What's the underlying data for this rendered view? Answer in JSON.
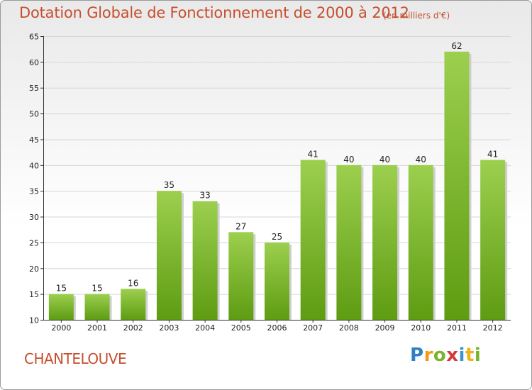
{
  "header": {
    "title": "Dotation Globale de Fonctionnement de 2000 à 2012",
    "unit": "(en milliers d'€)"
  },
  "footer": {
    "commune": "CHANTELOUVE",
    "logo": [
      "P",
      "r",
      "o",
      "x",
      "i",
      "t",
      "i"
    ]
  },
  "colors": {
    "accent_text": "#c64f2f",
    "bar_top": "#9ccf4e",
    "bar_bottom": "#5e9c12",
    "grid": "#d6d6d6"
  },
  "chart_data": {
    "type": "bar",
    "title": "Dotation Globale de Fonctionnement de 2000 à 2012",
    "subtitle": "(en milliers d'€)",
    "xlabel": "",
    "ylabel": "",
    "categories": [
      "2000",
      "2001",
      "2002",
      "2003",
      "2004",
      "2005",
      "2006",
      "2007",
      "2008",
      "2009",
      "2010",
      "2011",
      "2012"
    ],
    "values": [
      15,
      15,
      16,
      35,
      33,
      27,
      25,
      41,
      40,
      40,
      40,
      62,
      41
    ],
    "ylim": [
      10,
      65
    ],
    "yticks": [
      10,
      15,
      20,
      25,
      30,
      35,
      40,
      45,
      50,
      55,
      60,
      65
    ],
    "grid": true,
    "legend": "none"
  }
}
